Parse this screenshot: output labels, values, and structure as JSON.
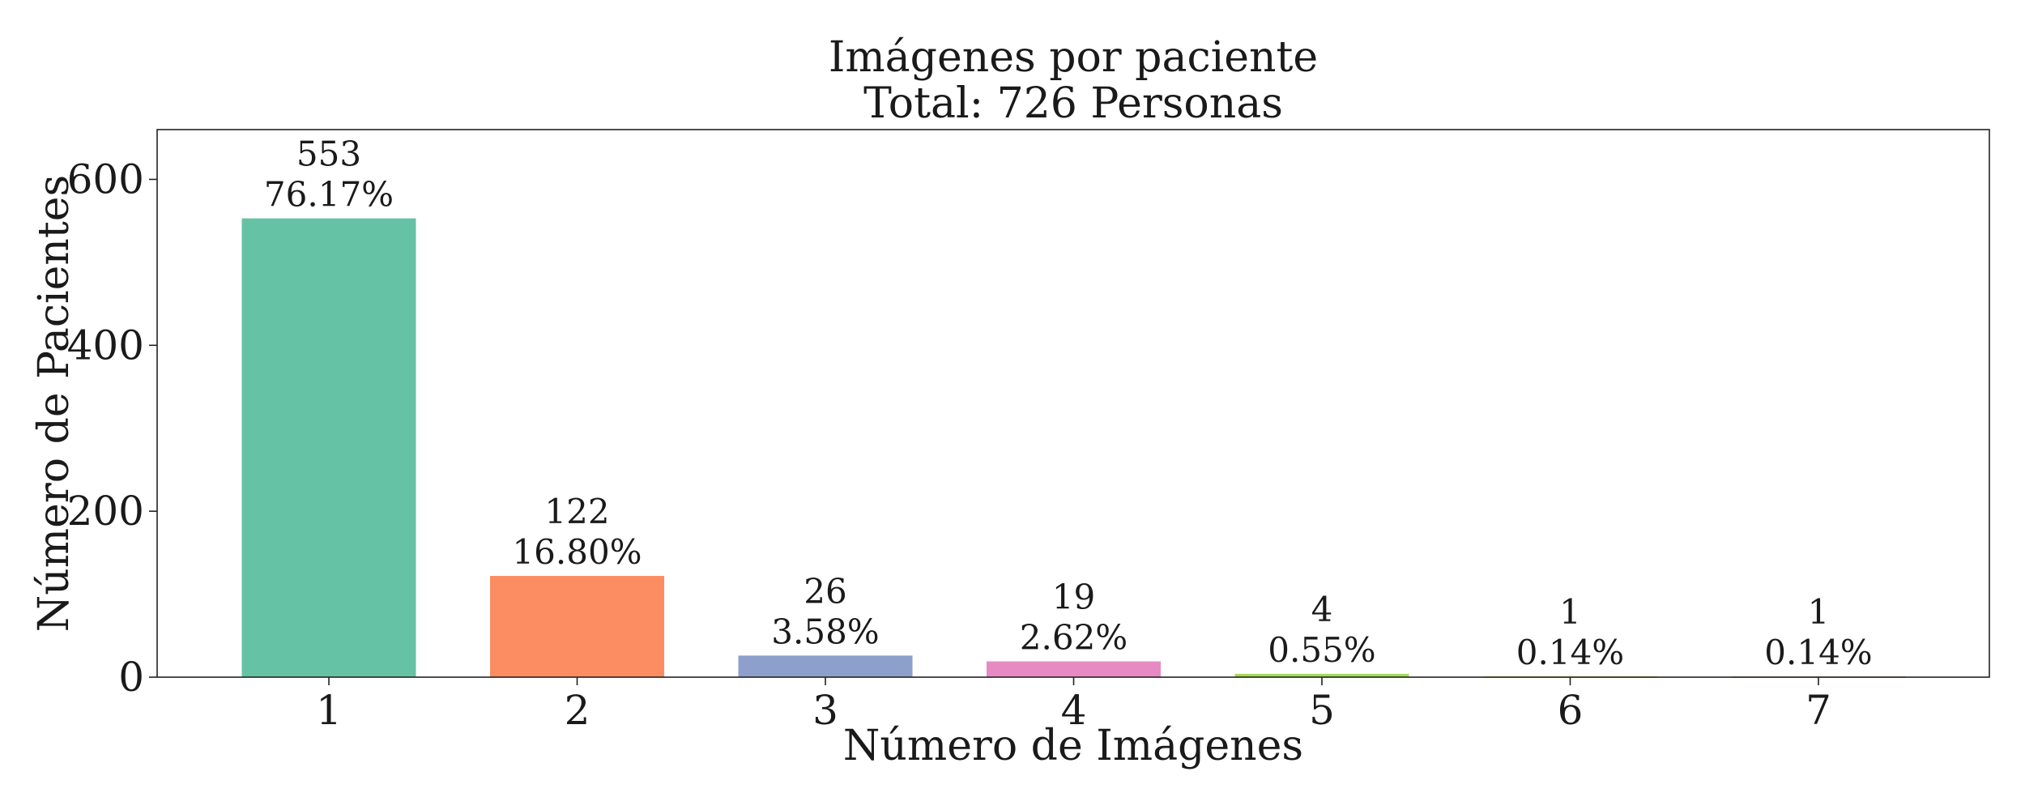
{
  "chart_data": {
    "type": "bar",
    "title": "Imágenes por paciente",
    "subtitle": "Total: 726 Personas",
    "xlabel": "Número de Imágenes",
    "ylabel": "Número de Pacientes",
    "categories": [
      "1",
      "2",
      "3",
      "4",
      "5",
      "6",
      "7"
    ],
    "values": [
      553,
      122,
      26,
      19,
      4,
      1,
      1
    ],
    "percent_labels": [
      "76.17%",
      "16.80%",
      "3.58%",
      "2.62%",
      "0.55%",
      "0.14%",
      "0.14%"
    ],
    "colors": [
      "#66c2a5",
      "#fc8d62",
      "#8da0cb",
      "#e78ac3",
      "#a6d854",
      "#ffd92f",
      "#e5c494"
    ],
    "ylim": [
      0,
      660
    ],
    "yticks": [
      0,
      200,
      400,
      600
    ],
    "grid": false,
    "legend": "none"
  }
}
